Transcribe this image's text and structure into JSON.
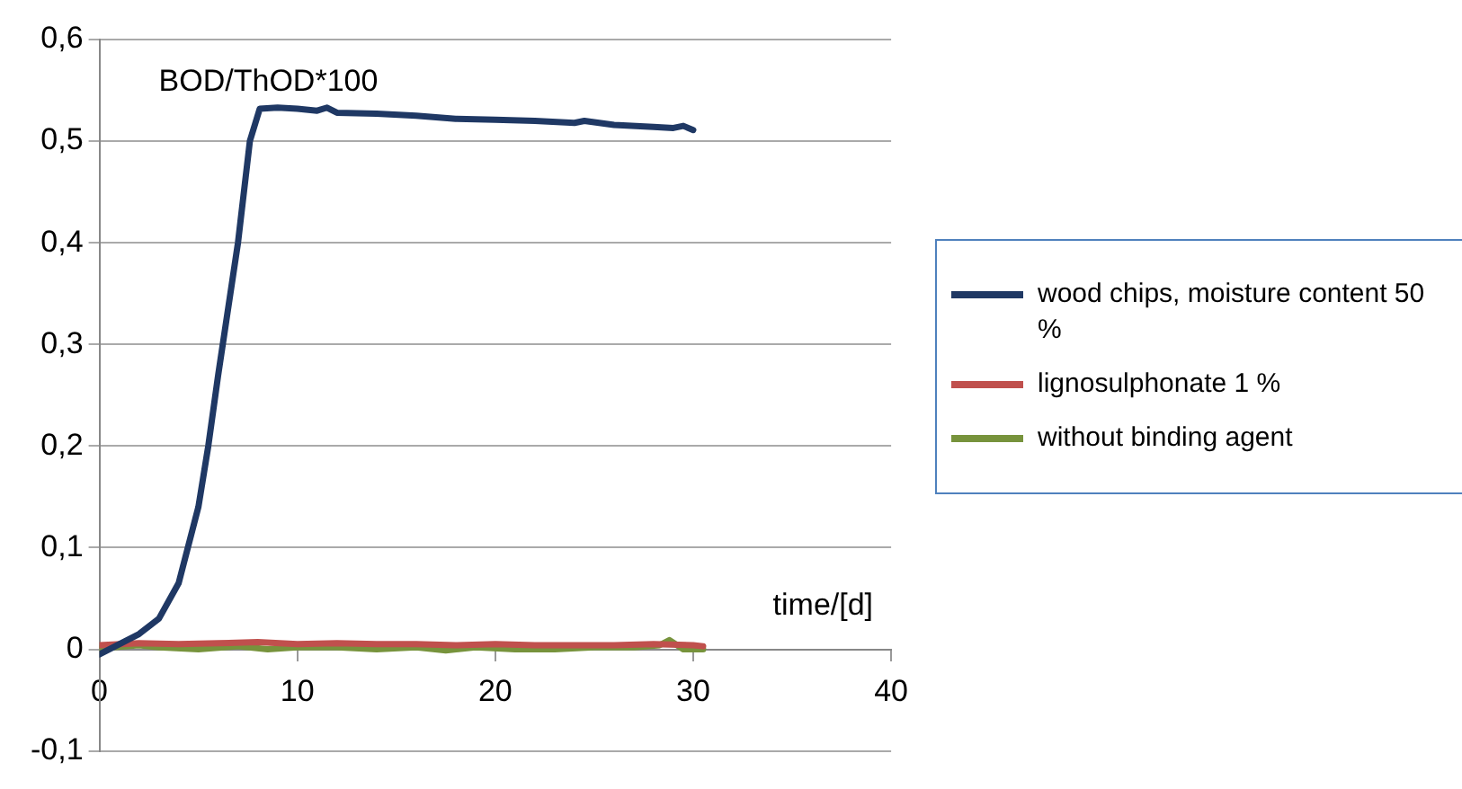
{
  "chart_data": {
    "type": "line",
    "xlabel": "time/[d]",
    "ylabel": "BOD/ThOD*100",
    "xlim": [
      0,
      40
    ],
    "xticks": [
      0,
      10,
      20,
      30,
      40
    ],
    "ylim": [
      -0.1,
      0.6
    ],
    "yticks": [
      {
        "value": -0.1,
        "label": "-0,1"
      },
      {
        "value": 0,
        "label": "0"
      },
      {
        "value": 0.1,
        "label": "0,1"
      },
      {
        "value": 0.2,
        "label": "0,2"
      },
      {
        "value": 0.3,
        "label": "0,3"
      },
      {
        "value": 0.4,
        "label": "0,4"
      },
      {
        "value": 0.5,
        "label": "0,5"
      },
      {
        "value": 0.6,
        "label": "0,6"
      }
    ],
    "grid": "y",
    "legend": "right",
    "marker": "none",
    "line_style": "solid",
    "series": [
      {
        "name": "wood chips, moisture content 50 %",
        "color": "#1f3864",
        "x": [
          0,
          1,
          2,
          3,
          4,
          5,
          5.5,
          6,
          7,
          7.6,
          8.1,
          9,
          10,
          11,
          11.5,
          12,
          14,
          16,
          18,
          20,
          22,
          24,
          24.5,
          26,
          28,
          29,
          29.5,
          30
        ],
        "values": [
          -0.005,
          0.005,
          0.015,
          0.03,
          0.065,
          0.14,
          0.2,
          0.27,
          0.4,
          0.5,
          0.532,
          0.533,
          0.532,
          0.53,
          0.533,
          0.528,
          0.527,
          0.525,
          0.522,
          0.521,
          0.52,
          0.518,
          0.52,
          0.516,
          0.514,
          0.513,
          0.515,
          0.511
        ]
      },
      {
        "name": "lignosulphonate 1 %",
        "color": "#c0504d",
        "x": [
          0,
          2,
          4,
          6,
          8,
          10,
          12,
          14,
          16,
          18,
          20,
          22,
          24,
          26,
          28,
          30,
          30.5
        ],
        "values": [
          0.004,
          0.006,
          0.005,
          0.006,
          0.007,
          0.005,
          0.006,
          0.005,
          0.005,
          0.004,
          0.005,
          0.004,
          0.004,
          0.004,
          0.005,
          0.004,
          0.003
        ]
      },
      {
        "name": "without binding agent",
        "color": "#77933c",
        "x": [
          0,
          2,
          3,
          5,
          7,
          8.5,
          10,
          12,
          14,
          16,
          17.5,
          19,
          21,
          23,
          25,
          27,
          28.3,
          28.8,
          29.5,
          30.5
        ],
        "values": [
          0.001,
          0.004,
          0.002,
          0,
          0.003,
          0,
          0.002,
          0.002,
          0,
          0.002,
          -0.001,
          0.002,
          0,
          0,
          0.002,
          0.002,
          0.004,
          0.009,
          0,
          0
        ]
      }
    ]
  }
}
